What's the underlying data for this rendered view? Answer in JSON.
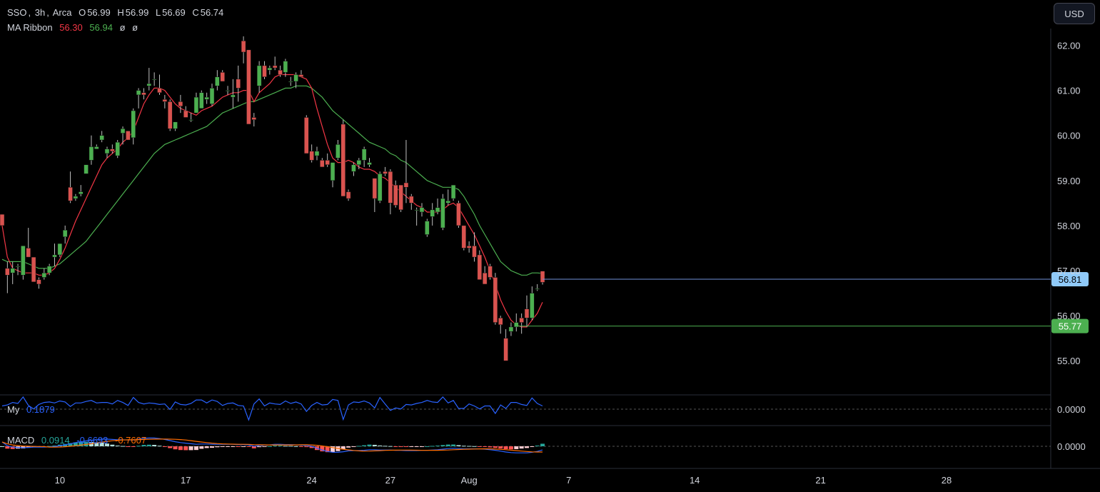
{
  "header": {
    "symbol": "SSO",
    "interval": "3h",
    "exchange": "Arca",
    "o_label": "O",
    "o_value": "56.99",
    "h_label": "H",
    "h_value": "56.99",
    "l_label": "L",
    "l_value": "56.69",
    "c_label": "C",
    "c_value": "56.74"
  },
  "ma_ribbon": {
    "label": "MA Ribbon",
    "v1": "56.30",
    "v2": "56.94",
    "v3": "ø",
    "v4": "ø"
  },
  "currency_button": "USD",
  "colors": {
    "up": "#4caf50",
    "down": "#d9534f",
    "ma_fast": "#f23645",
    "ma_slow": "#4caf50",
    "my_line": "#2962ff",
    "macd_line": "#2962ff",
    "signal_line": "#ff6d00",
    "price_badge": "#90caf9",
    "ma_badge": "#4caf50"
  },
  "chart_data": {
    "type": "candlestick",
    "price_axis": {
      "min": 55.0,
      "max": 62.0,
      "ticks": [
        "62.00",
        "61.00",
        "60.00",
        "59.00",
        "58.00",
        "57.00",
        "56.00",
        "55.00"
      ]
    },
    "time_axis": {
      "labels": [
        "10",
        "17",
        "24",
        "27",
        "Aug",
        "7",
        "14",
        "21",
        "28"
      ],
      "label_index": [
        11,
        35,
        59,
        74,
        89,
        108,
        132,
        156,
        180
      ]
    },
    "last_price_label": "56.81",
    "last_price": 56.81,
    "ma_level_label": "55.77",
    "ma_level": 55.77,
    "candles": [
      [
        58.25,
        58.0,
        58.25,
        58.0
      ],
      [
        57.05,
        56.5,
        57.2,
        56.9
      ],
      [
        56.95,
        56.7,
        57.2,
        57.05
      ],
      [
        57.1,
        56.9,
        57.15,
        57.1
      ],
      [
        56.9,
        56.8,
        57.55,
        57.55
      ],
      [
        57.5,
        57.3,
        57.95,
        57.3
      ],
      [
        57.3,
        56.8,
        57.3,
        56.75
      ],
      [
        56.8,
        56.6,
        56.85,
        56.7
      ],
      [
        56.85,
        56.8,
        57.05,
        56.95
      ],
      [
        56.95,
        56.9,
        57.15,
        57.1
      ],
      [
        57.3,
        57.1,
        57.6,
        57.35
      ],
      [
        57.35,
        57.3,
        57.6,
        57.6
      ],
      [
        57.75,
        57.6,
        58.0,
        57.9
      ],
      [
        58.85,
        58.5,
        59.2,
        58.55
      ],
      [
        58.6,
        58.55,
        58.7,
        58.65
      ],
      [
        58.7,
        58.65,
        58.9,
        58.75
      ],
      [
        59.15,
        59.2,
        59.35,
        59.35
      ],
      [
        59.45,
        59.35,
        60.0,
        59.75
      ],
      [
        59.7,
        59.7,
        59.8,
        59.75
      ],
      [
        59.9,
        59.85,
        60.1,
        60.0
      ],
      [
        59.6,
        59.5,
        59.75,
        59.7
      ],
      [
        59.7,
        59.6,
        59.8,
        59.65
      ],
      [
        59.55,
        59.5,
        59.9,
        59.85
      ],
      [
        60.05,
        59.8,
        60.2,
        60.15
      ],
      [
        60.1,
        59.9,
        60.1,
        59.9
      ],
      [
        59.95,
        59.8,
        60.6,
        60.55
      ],
      [
        60.9,
        60.6,
        61.05,
        61.0
      ],
      [
        60.95,
        60.8,
        61.05,
        60.9
      ],
      [
        61.1,
        61.0,
        61.5,
        61.15
      ],
      [
        61.25,
        61.1,
        61.4,
        61.25
      ],
      [
        61.05,
        60.9,
        61.35,
        60.95
      ],
      [
        60.8,
        60.6,
        60.9,
        60.75
      ],
      [
        60.75,
        60.1,
        60.8,
        60.15
      ],
      [
        60.15,
        60.1,
        60.3,
        60.3
      ],
      [
        60.75,
        60.5,
        60.9,
        60.65
      ],
      [
        60.55,
        60.4,
        60.65,
        60.4
      ],
      [
        60.35,
        60.3,
        60.5,
        60.35
      ],
      [
        60.5,
        60.5,
        60.95,
        60.85
      ],
      [
        60.6,
        60.6,
        61.0,
        60.95
      ],
      [
        60.8,
        60.7,
        60.95,
        60.85
      ],
      [
        60.7,
        60.65,
        61.15,
        61.05
      ],
      [
        61.1,
        61.0,
        61.45,
        61.3
      ],
      [
        61.4,
        61.2,
        61.45,
        61.2
      ],
      [
        61.0,
        60.9,
        61.1,
        61.0
      ],
      [
        60.85,
        60.6,
        61.25,
        60.9
      ],
      [
        61.25,
        60.75,
        61.55,
        61.05
      ],
      [
        62.1,
        61.6,
        62.2,
        61.85
      ],
      [
        61.9,
        60.4,
        61.9,
        60.25
      ],
      [
        60.4,
        60.2,
        60.5,
        60.35
      ],
      [
        61.1,
        60.95,
        61.65,
        61.55
      ],
      [
        61.55,
        61.25,
        61.65,
        61.3
      ],
      [
        61.45,
        61.35,
        61.55,
        61.5
      ],
      [
        61.55,
        61.45,
        61.75,
        61.5
      ],
      [
        61.45,
        61.3,
        61.55,
        61.35
      ],
      [
        61.4,
        61.3,
        61.7,
        61.65
      ],
      [
        61.2,
        61.1,
        61.3,
        61.2
      ],
      [
        61.2,
        61.05,
        61.4,
        61.35
      ],
      [
        61.35,
        61.3,
        61.45,
        61.3
      ],
      [
        60.4,
        59.6,
        60.45,
        59.6
      ],
      [
        59.65,
        59.4,
        59.8,
        59.45
      ],
      [
        59.55,
        59.45,
        59.75,
        59.65
      ],
      [
        59.45,
        59.3,
        59.5,
        59.3
      ],
      [
        59.45,
        59.3,
        59.6,
        59.35
      ],
      [
        59.0,
        58.85,
        59.4,
        59.4
      ],
      [
        59.5,
        59.45,
        59.9,
        59.8
      ],
      [
        60.25,
        60.2,
        60.35,
        58.65
      ],
      [
        58.75,
        58.55,
        58.8,
        58.6
      ],
      [
        59.2,
        59.1,
        59.4,
        59.35
      ],
      [
        59.35,
        59.25,
        59.5,
        59.45
      ],
      [
        59.45,
        59.3,
        59.75,
        59.7
      ],
      [
        59.35,
        59.3,
        59.5,
        59.4
      ],
      [
        59.05,
        58.3,
        59.05,
        58.6
      ],
      [
        58.55,
        58.5,
        59.2,
        59.15
      ],
      [
        59.2,
        59.1,
        59.3,
        59.15
      ],
      [
        59.2,
        58.25,
        59.25,
        58.5
      ],
      [
        58.9,
        58.4,
        59.0,
        58.45
      ],
      [
        58.9,
        58.3,
        58.9,
        58.35
      ],
      [
        58.95,
        58.5,
        59.9,
        58.85
      ],
      [
        58.65,
        58.35,
        58.7,
        58.5
      ],
      [
        58.35,
        58.0,
        58.4,
        58.35
      ],
      [
        58.3,
        58.2,
        58.5,
        58.4
      ],
      [
        57.8,
        57.75,
        58.15,
        58.1
      ],
      [
        58.2,
        58.0,
        58.5,
        58.35
      ],
      [
        58.3,
        58.25,
        58.6,
        58.4
      ],
      [
        57.95,
        57.9,
        58.7,
        58.6
      ],
      [
        58.5,
        58.45,
        58.8,
        58.55
      ],
      [
        58.6,
        58.55,
        58.9,
        58.9
      ],
      [
        58.5,
        57.95,
        58.55,
        58.0
      ],
      [
        58.0,
        57.45,
        58.0,
        57.5
      ],
      [
        57.55,
        57.4,
        57.65,
        57.5
      ],
      [
        57.55,
        57.2,
        57.85,
        57.3
      ],
      [
        57.35,
        56.8,
        57.45,
        56.8
      ],
      [
        56.95,
        56.8,
        57.1,
        56.7
      ],
      [
        57.1,
        56.8,
        57.15,
        56.85
      ],
      [
        56.85,
        55.8,
        56.95,
        55.85
      ],
      [
        55.95,
        55.6,
        56.0,
        55.8
      ],
      [
        55.5,
        55.0,
        55.7,
        55.0
      ],
      [
        55.65,
        55.55,
        55.85,
        55.75
      ],
      [
        55.75,
        55.65,
        56.05,
        55.85
      ],
      [
        55.95,
        55.6,
        56.05,
        55.85
      ],
      [
        56.15,
        55.75,
        56.45,
        55.95
      ],
      [
        55.95,
        55.9,
        56.65,
        56.5
      ],
      [
        56.6,
        56.55,
        56.7,
        56.6
      ],
      [
        56.99,
        56.69,
        56.99,
        56.74
      ]
    ],
    "ma_fast": [
      58.0,
      57.3,
      57.05,
      57.0,
      56.95,
      56.95,
      56.95,
      56.9,
      56.9,
      56.95,
      57.05,
      57.25,
      57.5,
      57.8,
      58.1,
      58.35,
      58.6,
      58.85,
      59.1,
      59.35,
      59.5,
      59.6,
      59.7,
      59.85,
      59.95,
      60.1,
      60.4,
      60.7,
      60.9,
      61.05,
      61.05,
      61.0,
      60.85,
      60.7,
      60.6,
      60.55,
      60.5,
      60.45,
      60.55,
      60.6,
      60.65,
      60.75,
      60.85,
      60.9,
      60.95,
      60.95,
      61.0,
      61.0,
      60.75,
      60.95,
      61.05,
      61.15,
      61.3,
      61.35,
      61.35,
      61.35,
      61.35,
      61.3,
      61.25,
      61.05,
      60.6,
      60.2,
      59.8,
      59.5,
      59.4,
      59.4,
      59.45,
      59.4,
      59.3,
      59.25,
      59.25,
      59.2,
      59.1,
      59.05,
      58.95,
      58.85,
      58.75,
      58.65,
      58.55,
      58.45,
      58.4,
      58.3,
      58.3,
      58.3,
      58.35,
      58.45,
      58.5,
      58.4,
      58.2,
      58.0,
      57.8,
      57.55,
      57.3,
      57.0,
      56.7,
      56.35,
      56.1,
      55.9,
      55.8,
      55.75,
      55.75,
      55.9,
      56.05,
      56.3
    ],
    "ma_slow": [
      57.25,
      57.2,
      57.2,
      57.2,
      57.2,
      57.15,
      57.1,
      57.05,
      57.05,
      57.05,
      57.1,
      57.15,
      57.25,
      57.35,
      57.45,
      57.55,
      57.65,
      57.8,
      57.95,
      58.1,
      58.25,
      58.4,
      58.55,
      58.7,
      58.85,
      59.0,
      59.15,
      59.3,
      59.45,
      59.6,
      59.7,
      59.8,
      59.85,
      59.9,
      59.95,
      60.0,
      60.05,
      60.1,
      60.15,
      60.2,
      60.3,
      60.4,
      60.5,
      60.55,
      60.6,
      60.65,
      60.7,
      60.75,
      60.75,
      60.8,
      60.85,
      60.9,
      60.95,
      61.0,
      61.05,
      61.05,
      61.1,
      61.1,
      61.1,
      61.05,
      60.95,
      60.85,
      60.7,
      60.55,
      60.45,
      60.35,
      60.25,
      60.15,
      60.05,
      59.95,
      59.85,
      59.8,
      59.75,
      59.7,
      59.6,
      59.55,
      59.45,
      59.4,
      59.3,
      59.2,
      59.1,
      59.0,
      58.95,
      58.9,
      58.85,
      58.85,
      58.85,
      58.8,
      58.65,
      58.45,
      58.25,
      58.0,
      57.8,
      57.6,
      57.4,
      57.2,
      57.1,
      57.0,
      56.95,
      56.9,
      56.9,
      56.95,
      56.95,
      56.94
    ]
  },
  "indicator_my": {
    "label": "My",
    "value": "0.1879",
    "zero_label": "0.0000"
  },
  "indicator_macd": {
    "label": "MACD",
    "v1": "0.0914",
    "v2": "-0.6693",
    "v3": "-0.7607",
    "zero_label": "0.0000"
  }
}
